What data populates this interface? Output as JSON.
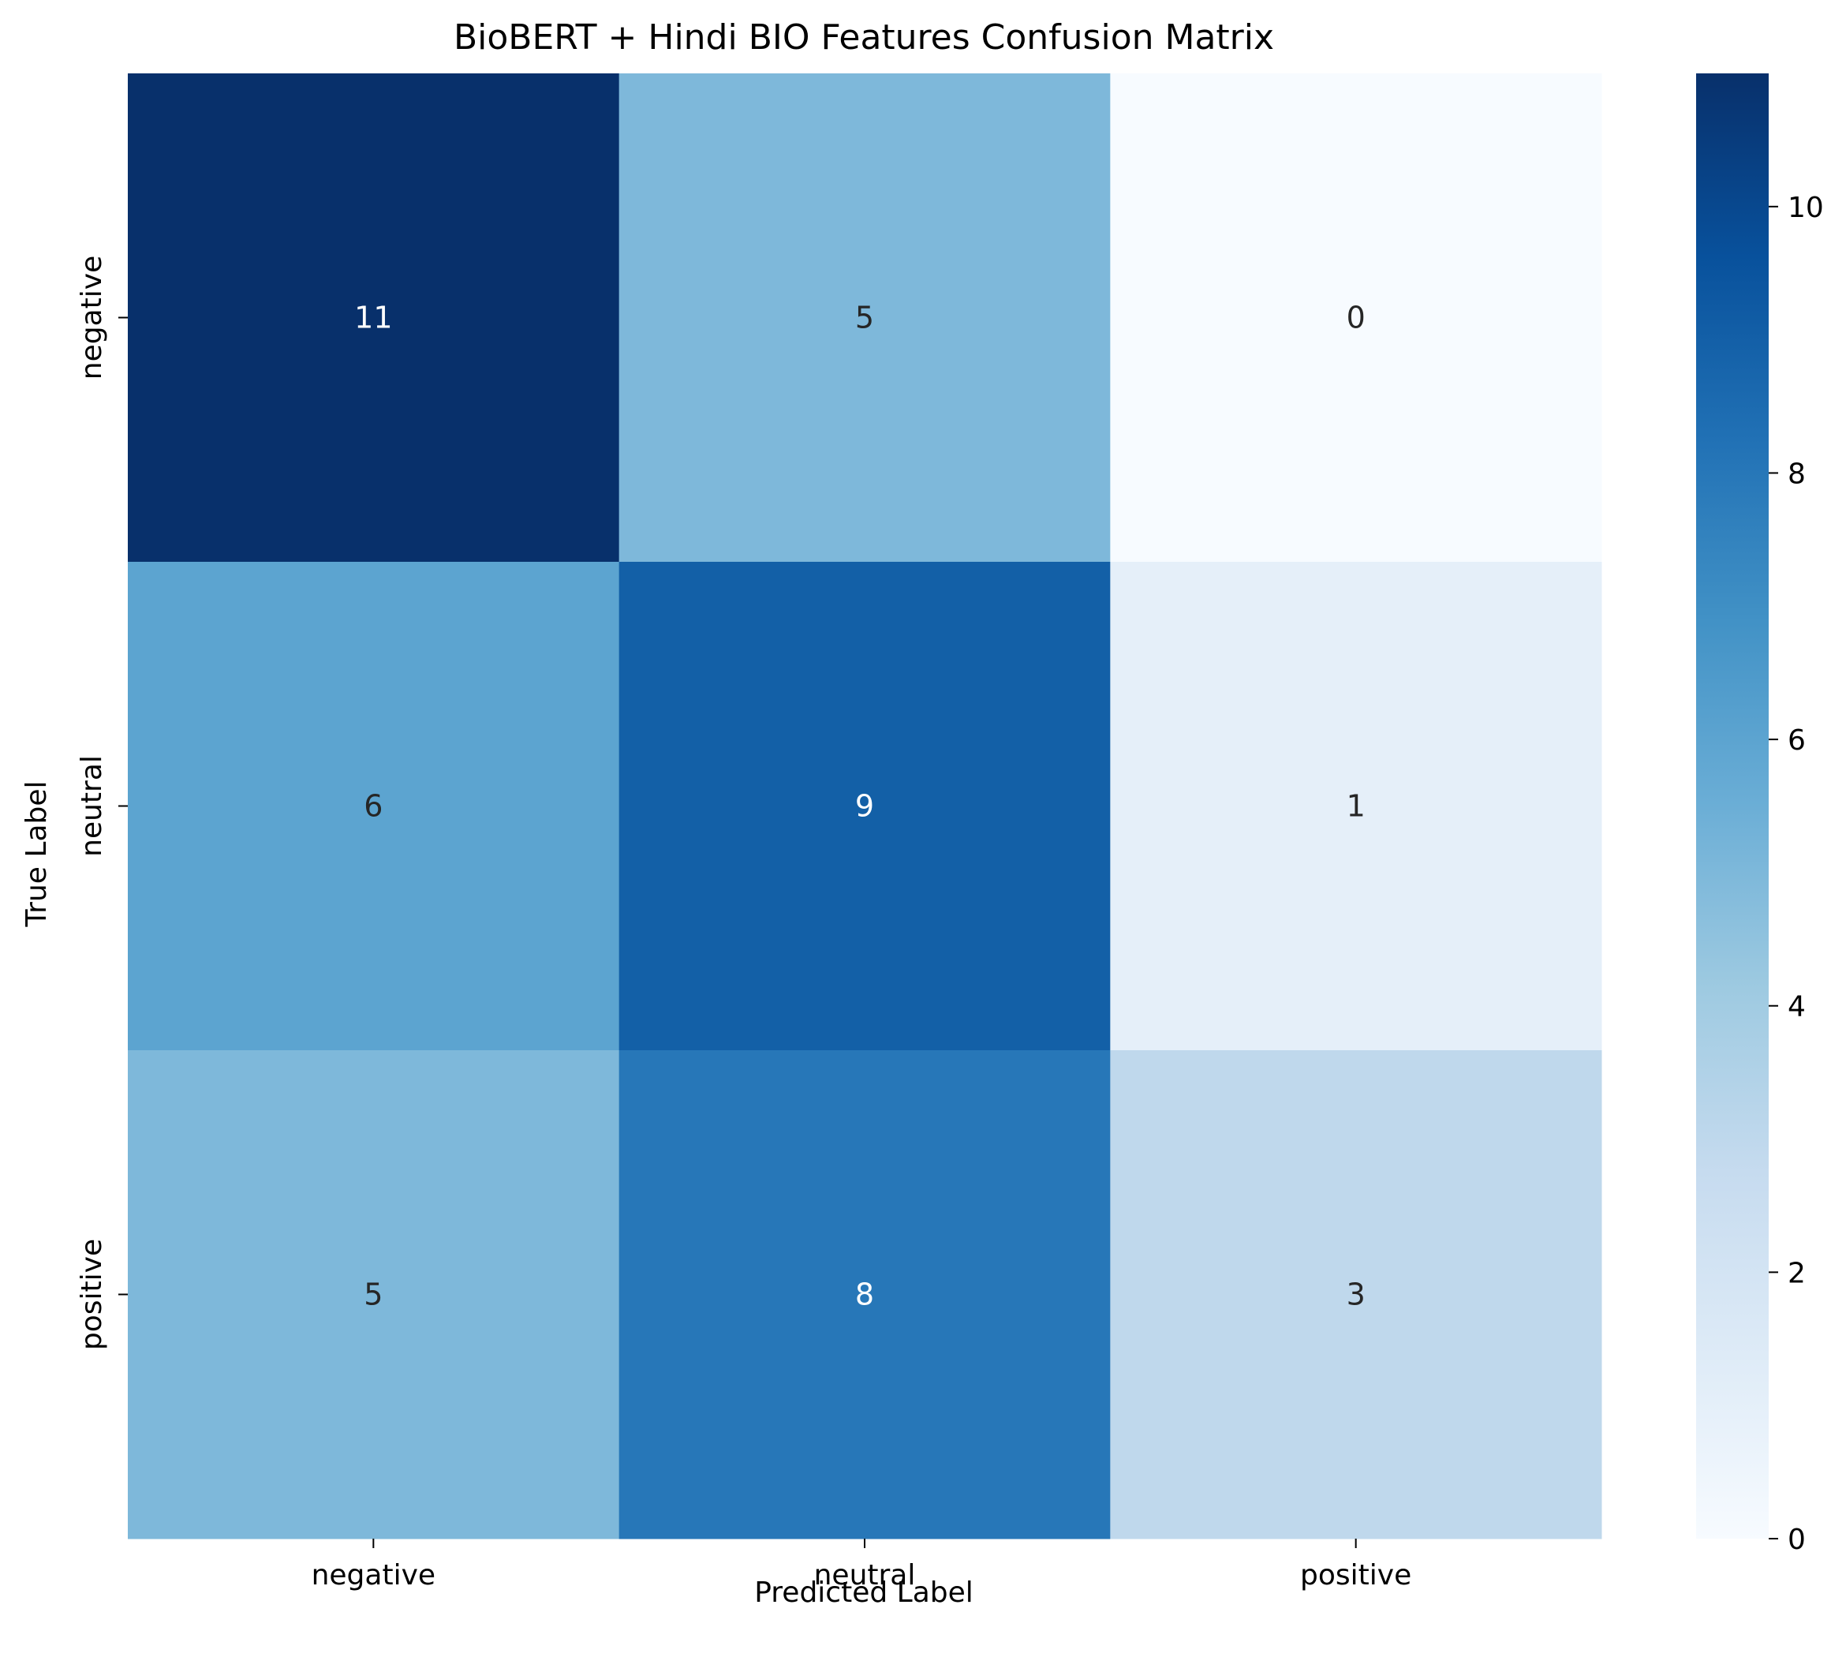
{
  "chart_data": {
    "type": "heatmap",
    "title": "BioBERT + Hindi BIO Features Confusion Matrix",
    "xlabel": "Predicted Label",
    "ylabel": "True Label",
    "x_categories": [
      "negative",
      "neutral",
      "positive"
    ],
    "y_categories": [
      "negative",
      "neutral",
      "positive"
    ],
    "values": [
      [
        11,
        5,
        0
      ],
      [
        6,
        9,
        1
      ],
      [
        5,
        8,
        3
      ]
    ],
    "colormap": "Blues",
    "color_range": [
      0,
      11
    ],
    "colorbar_ticks": [
      "0",
      "2",
      "4",
      "6",
      "8",
      "10"
    ],
    "annotations": true,
    "colors": {
      "low": "#f7fbff",
      "high": "#08306b",
      "text_dark": "#262626",
      "text_light": "#ffffff"
    }
  }
}
